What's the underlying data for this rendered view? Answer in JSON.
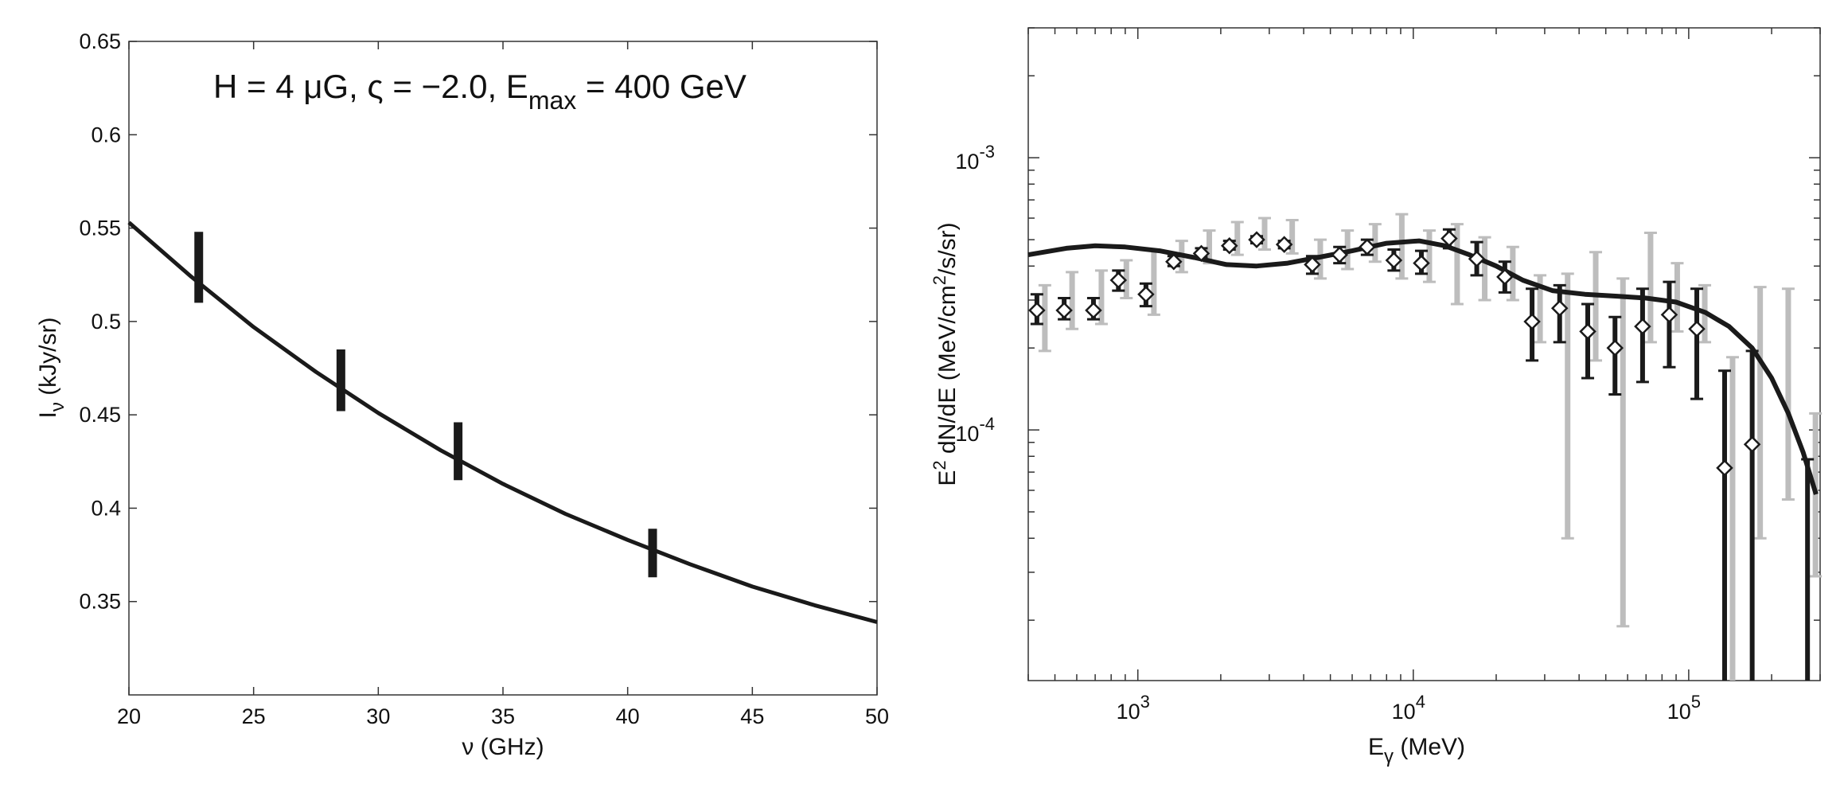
{
  "chart_data": [
    {
      "type": "line",
      "annotation": {
        "prefix": "H = 4 μG, ς = −2.0, E",
        "sub": "max",
        "suffix": " = 400 GeV"
      },
      "xlabel": "ν (GHz)",
      "ylabel": {
        "main": "I",
        "sub": "ν",
        "rest": " (kJy/sr)"
      },
      "xlim": [
        20,
        50
      ],
      "ylim": [
        0.3,
        0.65
      ],
      "xticks": [
        20,
        25,
        30,
        35,
        40,
        45,
        50
      ],
      "xtick_labels": [
        "20",
        "25",
        "30",
        "35",
        "40",
        "45",
        "50"
      ],
      "yticks": [
        0.35,
        0.4,
        0.45,
        0.5,
        0.55,
        0.6,
        0.65
      ],
      "ytick_labels": [
        "0.35",
        "0.4",
        "0.45",
        "0.5",
        "0.55",
        "0.6",
        "0.65"
      ],
      "model_curve": {
        "x": [
          20,
          22.5,
          25,
          27.5,
          30,
          32.5,
          35,
          37.5,
          40,
          42.5,
          45,
          47.5,
          50
        ],
        "y": [
          0.553,
          0.524,
          0.497,
          0.473,
          0.451,
          0.431,
          0.413,
          0.397,
          0.383,
          0.37,
          0.358,
          0.348,
          0.339
        ]
      },
      "data_errorbars": [
        {
          "x": 22.8,
          "low": 0.51,
          "high": 0.548
        },
        {
          "x": 28.5,
          "low": 0.452,
          "high": 0.485
        },
        {
          "x": 33.2,
          "low": 0.415,
          "high": 0.446
        },
        {
          "x": 41.0,
          "low": 0.363,
          "high": 0.389
        }
      ]
    },
    {
      "type": "scatter",
      "xscale": "log",
      "yscale": "log",
      "xlabel": {
        "main": "E",
        "sub": "γ",
        "rest": " (MeV)"
      },
      "ylabel": {
        "a": "E",
        "sup1": "2",
        "b": " dN/dE (MeV/cm",
        "sup2": "2",
        "c": "/s/sr)"
      },
      "xlim": [
        400,
        300000
      ],
      "ylim": [
        1.2e-05,
        0.003
      ],
      "xtick_labels": [
        {
          "base": "10",
          "exp": "3",
          "value": 1000
        },
        {
          "base": "10",
          "exp": "4",
          "value": 10000
        },
        {
          "base": "10",
          "exp": "5",
          "value": 100000
        }
      ],
      "ytick_labels": [
        {
          "base": "10",
          "exp": "-4",
          "value": 0.0001
        },
        {
          "base": "10",
          "exp": "-3",
          "value": 0.001
        }
      ],
      "model_curve": {
        "x": [
          400,
          550,
          700,
          900,
          1200,
          1600,
          2100,
          2700,
          3500,
          4500,
          6000,
          8000,
          10500,
          13000,
          16000,
          20000,
          25000,
          32000,
          42000,
          55000,
          70000,
          90000,
          115000,
          140000,
          170000,
          200000,
          230000,
          260000,
          290000
        ],
        "y": [
          0.00044,
          0.000465,
          0.000475,
          0.00047,
          0.000455,
          0.00043,
          0.000405,
          0.0004,
          0.00041,
          0.00043,
          0.000455,
          0.000485,
          0.000495,
          0.000475,
          0.00044,
          0.0004,
          0.000355,
          0.000325,
          0.000315,
          0.00031,
          0.000305,
          0.000295,
          0.00027,
          0.00024,
          0.0002,
          0.000155,
          0.000115,
          8.3e-05,
          5.8e-05
        ]
      },
      "data_points": [
        {
          "x": 430,
          "y": 0.000275,
          "err_low": 0.000245,
          "err_high": 0.000315,
          "sys_low": 0.000195,
          "sys_high": 0.00034
        },
        {
          "x": 540,
          "y": 0.000275,
          "err_low": 0.000255,
          "err_high": 0.000305,
          "sys_low": 0.000235,
          "sys_high": 0.00038
        },
        {
          "x": 690,
          "y": 0.000275,
          "err_low": 0.000255,
          "err_high": 0.000305,
          "sys_low": 0.000245,
          "sys_high": 0.000385
        },
        {
          "x": 850,
          "y": 0.000355,
          "err_low": 0.000325,
          "err_high": 0.000385,
          "sys_low": 0.000305,
          "sys_high": 0.00042
        },
        {
          "x": 1070,
          "y": 0.000315,
          "err_low": 0.000285,
          "err_high": 0.000345,
          "sys_low": 0.000265,
          "sys_high": 0.00046
        },
        {
          "x": 1350,
          "y": 0.000415,
          "err_low": 0.0004,
          "err_high": 0.000435,
          "sys_low": 0.00038,
          "sys_high": 0.000495
        },
        {
          "x": 1700,
          "y": 0.000445,
          "err_low": 0.00043,
          "err_high": 0.000465,
          "sys_low": 0.00041,
          "sys_high": 0.00054
        },
        {
          "x": 2150,
          "y": 0.000475,
          "err_low": 0.00046,
          "err_high": 0.000495,
          "sys_low": 0.00044,
          "sys_high": 0.00058
        },
        {
          "x": 2700,
          "y": 0.0005,
          "err_low": 0.000485,
          "err_high": 0.000515,
          "sys_low": 0.00046,
          "sys_high": 0.0006
        },
        {
          "x": 3400,
          "y": 0.00048,
          "err_low": 0.000465,
          "err_high": 0.000495,
          "sys_low": 0.000445,
          "sys_high": 0.00059
        },
        {
          "x": 4300,
          "y": 0.000405,
          "err_low": 0.000375,
          "err_high": 0.000435,
          "sys_low": 0.00036,
          "sys_high": 0.0005
        },
        {
          "x": 5400,
          "y": 0.00044,
          "err_low": 0.00041,
          "err_high": 0.00047,
          "sys_low": 0.00039,
          "sys_high": 0.00054
        },
        {
          "x": 6800,
          "y": 0.00047,
          "err_low": 0.00044,
          "err_high": 0.0005,
          "sys_low": 0.000415,
          "sys_high": 0.00057
        },
        {
          "x": 8500,
          "y": 0.00042,
          "err_low": 0.000385,
          "err_high": 0.00046,
          "sys_low": 0.00036,
          "sys_high": 0.00062
        },
        {
          "x": 10700,
          "y": 0.00041,
          "err_low": 0.000375,
          "err_high": 0.000455,
          "sys_low": 0.00035,
          "sys_high": 0.00054
        },
        {
          "x": 13500,
          "y": 0.000505,
          "err_low": 0.000465,
          "err_high": 0.000545,
          "sys_low": 0.00029,
          "sys_high": 0.00057
        },
        {
          "x": 17000,
          "y": 0.000425,
          "err_low": 0.00037,
          "err_high": 0.00049,
          "sys_low": 0.0003,
          "sys_high": 0.00051
        },
        {
          "x": 21500,
          "y": 0.000365,
          "err_low": 0.00032,
          "err_high": 0.000415,
          "sys_low": 0.0003,
          "sys_high": 0.00047
        },
        {
          "x": 27000,
          "y": 0.00025,
          "err_low": 0.00018,
          "err_high": 0.00033,
          "sys_low": 0.00021,
          "sys_high": 0.00037
        },
        {
          "x": 34000,
          "y": 0.00028,
          "err_low": 0.00021,
          "err_high": 0.00034,
          "sys_low": 4e-05,
          "sys_high": 0.000375
        },
        {
          "x": 43000,
          "y": 0.00023,
          "err_low": 0.000155,
          "err_high": 0.00029,
          "sys_low": 0.00018,
          "sys_high": 0.00045
        },
        {
          "x": 54000,
          "y": 0.0002,
          "err_low": 0.000135,
          "err_high": 0.00026,
          "sys_low": 1.9e-05,
          "sys_high": 0.00036
        },
        {
          "x": 68000,
          "y": 0.00024,
          "err_low": 0.00015,
          "err_high": 0.00033,
          "sys_low": 0.00021,
          "sys_high": 0.00053
        },
        {
          "x": 85000,
          "y": 0.000265,
          "err_low": 0.00017,
          "err_high": 0.00035,
          "sys_low": 0.00023,
          "sys_high": 0.00041
        },
        {
          "x": 107000,
          "y": 0.000235,
          "err_low": 0.00013,
          "err_high": 0.00033,
          "sys_low": 0.00021,
          "sys_high": 0.00034
        },
        {
          "x": 135000,
          "y": 7.25e-05,
          "err_low": 1.2e-05,
          "err_high": 0.000165,
          "sys_low": 1.2e-05,
          "sys_high": 0.000185
        },
        {
          "x": 170000,
          "y": 8.85e-05,
          "err_low": 1.2e-05,
          "err_high": 0.000195,
          "sys_low": 4e-05,
          "sys_high": 0.000335
        },
        {
          "x": 215000,
          "y": null,
          "err_low": null,
          "err_high": null,
          "sys_low": 5.55e-05,
          "sys_high": 0.00033
        },
        {
          "x": 270000,
          "y": null,
          "err_low": 1.2e-05,
          "err_high": 7.8e-05,
          "sys_low": 2.9e-05,
          "sys_high": 0.000115
        }
      ]
    }
  ]
}
